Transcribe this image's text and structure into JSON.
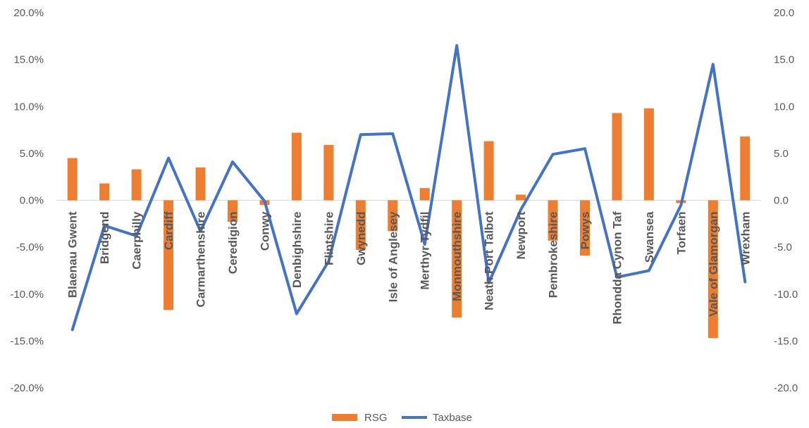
{
  "chart_data": {
    "type": "bar",
    "categories": [
      "Blaenau Gwent",
      "Bridgend",
      "Caerphilly",
      "Cardiff",
      "Carmarthenshire",
      "Ceredigion",
      "Conwy",
      "Denbighshire",
      "Flintshire",
      "Gwynedd",
      "Isle of Anglesey",
      "Merthyr Tydfil",
      "Monmouthshire",
      "Neath Port Talbot",
      "Newport",
      "Pembrokeshire",
      "Powys",
      "Rhondda Cynon Taf",
      "Swansea",
      "Torfaen",
      "Vale of Glamorgan",
      "Wrexham"
    ],
    "series": [
      {
        "name": "RSG",
        "kind": "bar",
        "color": "#ED7D31",
        "values": [
          4.5,
          1.8,
          3.3,
          -11.7,
          3.5,
          -2.3,
          -0.5,
          7.2,
          5.9,
          -5.3,
          -3.3,
          1.3,
          -12.5,
          6.3,
          0.6,
          -4.3,
          -5.9,
          9.3,
          9.8,
          -0.3,
          -14.7,
          6.8
        ]
      },
      {
        "name": "Taxbase",
        "kind": "line",
        "color": "#4472C4",
        "values": [
          -13.8,
          -2.7,
          -3.8,
          4.5,
          -3.3,
          4.1,
          -0.1,
          -12.1,
          -6.5,
          7.0,
          7.1,
          -4.7,
          16.5,
          -8.8,
          -1.0,
          4.9,
          5.5,
          -8.2,
          -7.5,
          -0.5,
          14.5,
          -8.7
        ]
      }
    ],
    "ylim": [
      -20,
      20
    ],
    "y_ticks_left": [
      "20.0%",
      "15.0%",
      "10.0%",
      "5.0%",
      "0.0%",
      "-5.0%",
      "-10.0%",
      "-15.0%",
      "-20.0%"
    ],
    "y_ticks_right": [
      "20.0",
      "15.0",
      "10.0",
      "5.0",
      "0.0",
      "-5.0",
      "-10.0",
      "-15.0",
      "-20.0"
    ],
    "grid": false,
    "legend": "bottom"
  }
}
